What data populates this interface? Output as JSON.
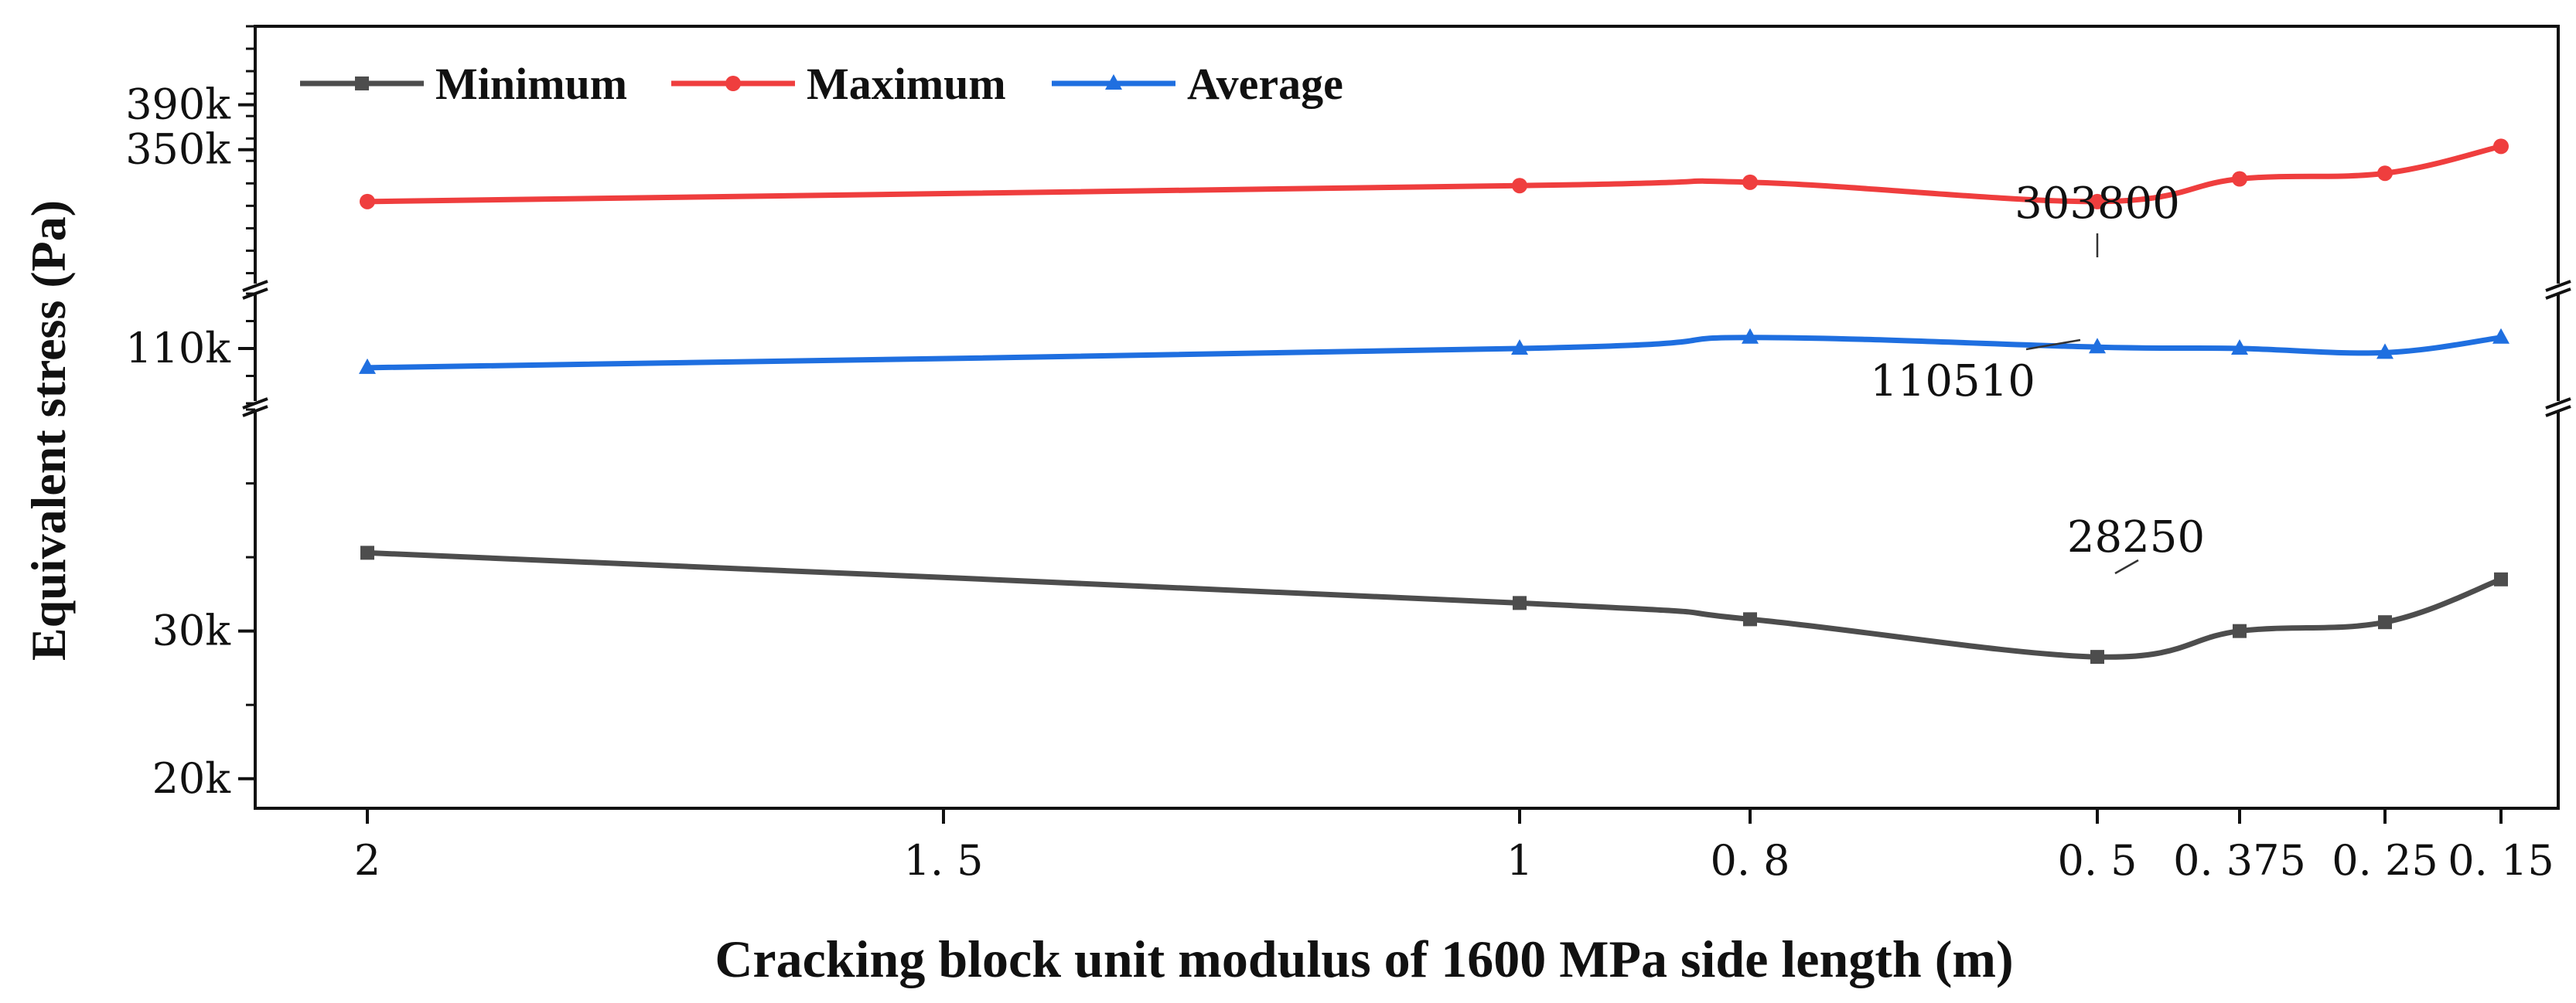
{
  "chart_data": {
    "type": "line",
    "title": "",
    "xlabel": "Cracking block unit modulus of 1600 MPa side length (m)",
    "ylabel": "Equivalent stress (Pa)",
    "categories": [
      "2",
      "1.5",
      "1",
      "0.8",
      "0.5",
      "0.375",
      "0.25",
      "0.15"
    ],
    "x_values": [
      2,
      1.5,
      1,
      0.8,
      0.5,
      0.375,
      0.25,
      0.15
    ],
    "x_tick_labels": [
      "2",
      "1. 5",
      "1",
      "0. 8",
      "0. 5",
      "0. 375",
      "0. 25",
      "0. 15"
    ],
    "y_axis_break": true,
    "y_segments": [
      {
        "name": "lower",
        "ylim": [
          18000,
          45000
        ],
        "ticks": [
          20000,
          30000
        ],
        "tick_labels": [
          "20k",
          "30k"
        ]
      },
      {
        "name": "middle",
        "ylim": [
          90000,
          130000
        ],
        "ticks": [
          110000
        ],
        "tick_labels": [
          "110k"
        ]
      },
      {
        "name": "upper",
        "ylim": [
          230000,
          460000
        ],
        "ticks": [
          350000,
          390000
        ],
        "tick_labels": [
          "350k",
          "390k"
        ]
      }
    ],
    "series": [
      {
        "name": "Minimum",
        "color": "#4d4d4d",
        "marker": "square",
        "segment": "lower",
        "x": [
          2,
          1,
          0.8,
          0.5,
          0.375,
          0.25,
          0.15
        ],
        "values": [
          35300,
          31900,
          30800,
          28250,
          30000,
          30600,
          33500
        ]
      },
      {
        "name": "Maximum",
        "color": "#ef3e3e",
        "marker": "circle",
        "segment": "upper",
        "x": [
          2,
          1,
          0.8,
          0.5,
          0.375,
          0.25,
          0.15
        ],
        "values": [
          303800,
          318000,
          321000,
          303800,
          324000,
          329000,
          353000
        ]
      },
      {
        "name": "Average",
        "color": "#1f6fe0",
        "marker": "triangle",
        "segment": "middle",
        "x": [
          2,
          1,
          0.8,
          0.5,
          0.375,
          0.25,
          0.15
        ],
        "values": [
          103000,
          110000,
          114000,
          110510,
          110000,
          108500,
          114000
        ]
      }
    ],
    "annotations": [
      {
        "text": "303800",
        "series": "Maximum",
        "x": 0.5
      },
      {
        "text": "110510",
        "series": "Average",
        "x": 0.5
      },
      {
        "text": "28250",
        "series": "Minimum",
        "x": 0.5
      }
    ],
    "legend_position": "top-left",
    "grid": false
  }
}
